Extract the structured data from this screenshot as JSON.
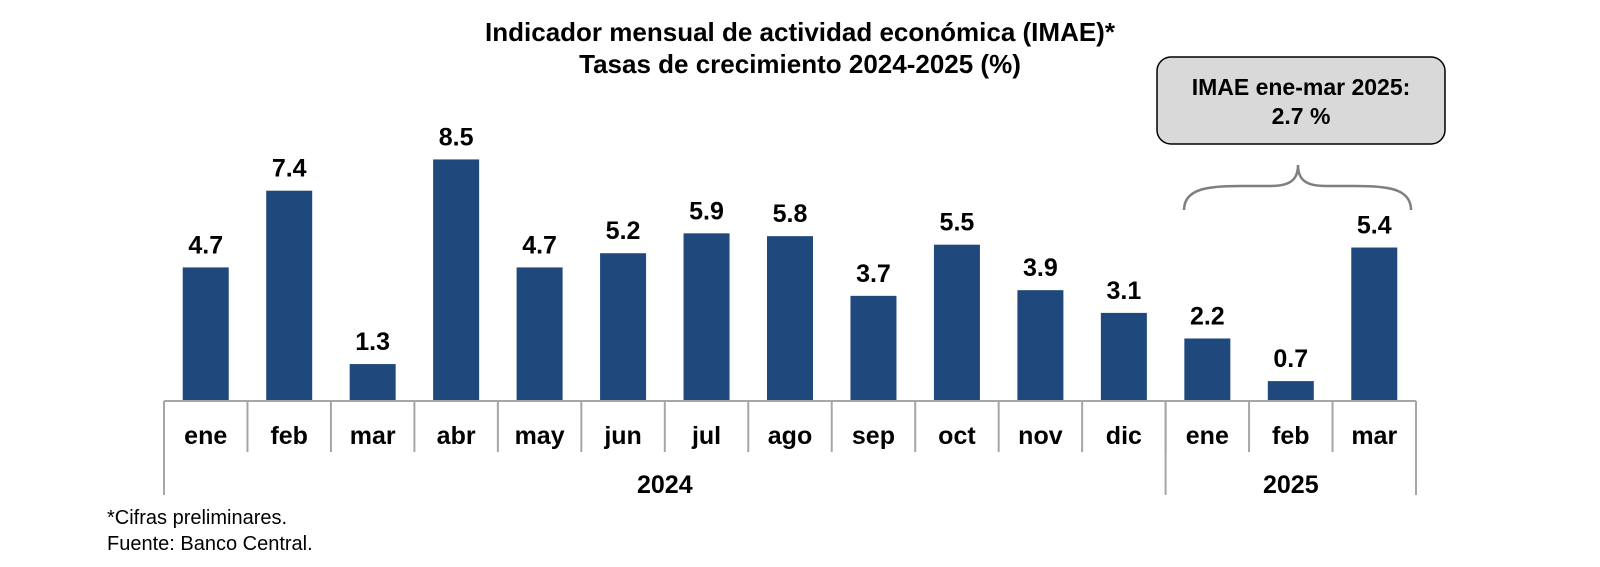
{
  "title": "Indicador mensual de actividad económica (IMAE)*",
  "subtitle": "Tasas de crecimiento 2024-2025 (%)",
  "callout": {
    "line1": "IMAE ene-mar 2025:",
    "line2": "2.7 %"
  },
  "notes": {
    "preliminary": "*Cifras preliminares.",
    "source": "Fuente: Banco Central."
  },
  "colors": {
    "bar": "#1f497d",
    "callout_fill": "#d9d9d9",
    "axis": "#a6a6a6"
  },
  "chart_data": {
    "type": "bar",
    "title": "Indicador mensual de actividad económica (IMAE)*",
    "subtitle": "Tasas de crecimiento 2024-2025 (%)",
    "categories": [
      "ene",
      "feb",
      "mar",
      "abr",
      "may",
      "jun",
      "jul",
      "ago",
      "sep",
      "oct",
      "nov",
      "dic",
      "ene",
      "feb",
      "mar"
    ],
    "groups": [
      {
        "label": "2024",
        "count": 12
      },
      {
        "label": "2025",
        "count": 3
      }
    ],
    "values": [
      4.7,
      7.4,
      1.3,
      8.5,
      4.7,
      5.2,
      5.9,
      5.8,
      3.7,
      5.5,
      3.9,
      3.1,
      2.2,
      0.7,
      5.4
    ],
    "ylim": [
      0,
      9
    ],
    "grid": false,
    "legend": "none"
  }
}
